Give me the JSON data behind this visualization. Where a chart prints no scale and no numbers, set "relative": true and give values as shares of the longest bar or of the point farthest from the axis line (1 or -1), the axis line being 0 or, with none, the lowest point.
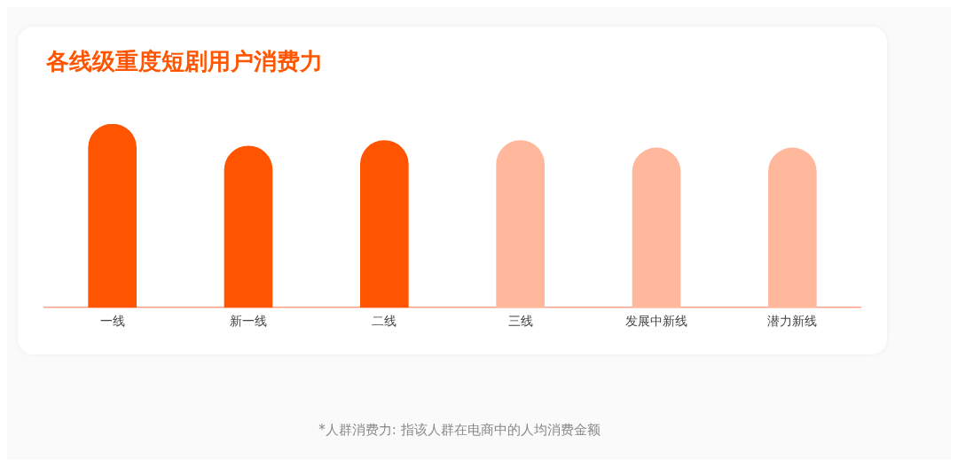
{
  "chart_data": {
    "type": "bar",
    "title": "各线级重度短剧用户消费力",
    "categories": [
      "一线",
      "新一线",
      "二线",
      "三线",
      "发展中新线",
      "潜力新线"
    ],
    "values": [
      1,
      0.88,
      0.91,
      0.91,
      0.87,
      0.87
    ],
    "colors": [
      "#ff5500",
      "#ff5500",
      "#ff5500",
      "#ffb89c",
      "#ffb89c",
      "#ffb89c"
    ],
    "relative": true,
    "annotations": [
      "*人群消费力: 指该人群在电商中的人均消费金额"
    ]
  }
}
